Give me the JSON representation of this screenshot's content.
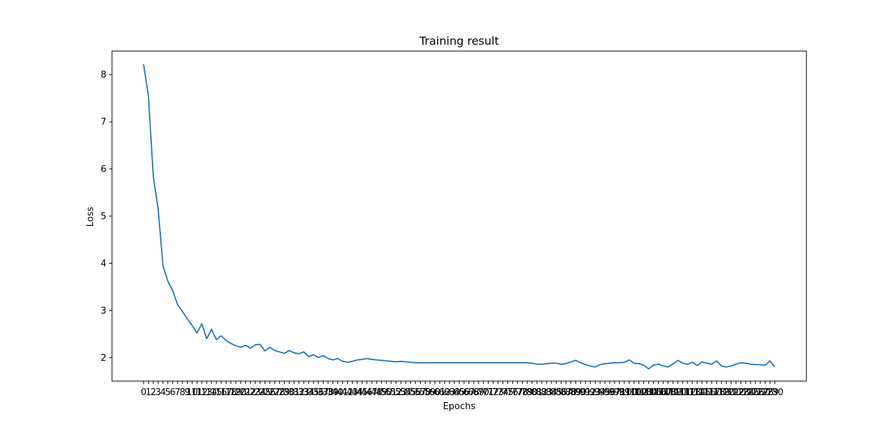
{
  "chart_data": {
    "type": "line",
    "title": "Training result",
    "xlabel": "Epochs",
    "ylabel": "Loss",
    "ylim": [
      1.5,
      8.5
    ],
    "xlim": [
      -6.5,
      136.5
    ],
    "yticks": [
      2,
      3,
      4,
      5,
      6,
      7,
      8
    ],
    "x_tick_labels_note": "one tick per epoch, labels 0..130 overlap",
    "grid": false,
    "color": "#1f77b4",
    "series": [
      {
        "x": [
          0,
          1,
          2,
          3,
          4,
          5,
          6,
          7,
          8,
          9,
          10,
          11,
          12,
          13,
          14,
          15,
          16,
          17,
          18,
          19,
          20,
          21,
          22,
          23,
          24,
          25,
          26,
          27,
          28,
          29,
          30,
          31,
          32,
          33,
          34,
          35,
          36,
          37,
          38,
          39,
          40,
          41,
          42,
          43,
          44,
          45,
          46,
          47,
          48,
          49,
          50,
          51,
          52,
          53,
          54,
          55,
          56,
          57,
          58,
          59,
          60,
          61,
          62,
          63,
          64,
          65,
          66,
          67,
          68,
          69,
          70,
          71,
          72,
          73,
          74,
          75,
          76,
          77,
          78,
          79,
          80,
          81,
          82,
          83,
          84,
          85,
          86,
          87,
          88,
          89,
          90,
          91,
          92,
          93,
          94,
          95,
          96,
          97,
          98,
          99,
          100,
          101,
          102,
          103,
          104,
          105,
          106,
          107,
          108,
          109,
          110,
          111,
          112,
          113,
          114,
          115,
          116,
          117,
          118,
          119,
          120,
          121,
          122,
          123,
          124,
          125,
          126,
          127,
          128,
          129,
          130
        ],
        "values": [
          8.22,
          7.55,
          5.85,
          5.15,
          3.95,
          3.62,
          3.42,
          3.12,
          2.98,
          2.82,
          2.68,
          2.52,
          2.72,
          2.4,
          2.6,
          2.38,
          2.46,
          2.36,
          2.3,
          2.25,
          2.22,
          2.26,
          2.2,
          2.27,
          2.28,
          2.14,
          2.22,
          2.15,
          2.12,
          2.09,
          2.15,
          2.1,
          2.08,
          2.12,
          2.02,
          2.06,
          2.0,
          2.04,
          1.98,
          1.95,
          1.98,
          1.92,
          1.9,
          1.92,
          1.95,
          1.96,
          1.98,
          1.96,
          1.95,
          1.94,
          1.93,
          1.92,
          1.91,
          1.92,
          1.91,
          1.9,
          1.89,
          1.89,
          1.89,
          1.89,
          1.89,
          1.89,
          1.89,
          1.89,
          1.89,
          1.89,
          1.89,
          1.89,
          1.89,
          1.89,
          1.89,
          1.89,
          1.89,
          1.89,
          1.89,
          1.89,
          1.89,
          1.89,
          1.89,
          1.89,
          1.88,
          1.86,
          1.86,
          1.87,
          1.88,
          1.88,
          1.86,
          1.87,
          1.91,
          1.94,
          1.89,
          1.85,
          1.82,
          1.8,
          1.85,
          1.87,
          1.88,
          1.89,
          1.89,
          1.9,
          1.95,
          1.88,
          1.87,
          1.84,
          1.76,
          1.84,
          1.86,
          1.82,
          1.8,
          1.86,
          1.94,
          1.88,
          1.86,
          1.9,
          1.83,
          1.91,
          1.88,
          1.86,
          1.93,
          1.82,
          1.8,
          1.82,
          1.86,
          1.89,
          1.88,
          1.86,
          1.85,
          1.85,
          1.84,
          1.93,
          1.8
        ]
      }
    ]
  }
}
